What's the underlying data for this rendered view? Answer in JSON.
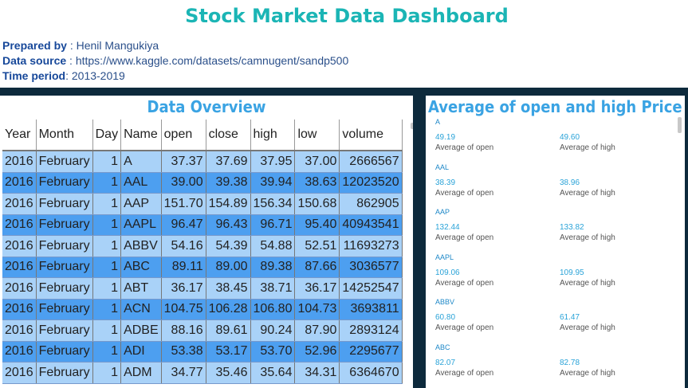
{
  "header": {
    "title": "Stock Market Data Dashboard",
    "prepared_by_label": "Prepared by",
    "prepared_by_value": " : Henil Mangukiya",
    "data_source_label": "Data source",
    "data_source_value": " : https://www.kaggle.com/datasets/camnugent/sandp500",
    "time_period_label": "Time period",
    "time_period_value": ": 2013-2019"
  },
  "overview": {
    "title": "Data Overview",
    "columns": [
      "Year",
      "Month",
      "Day",
      "Name",
      "open",
      "close",
      "high",
      "low",
      "volume"
    ],
    "rows": [
      [
        "2016",
        "February",
        "1",
        "A",
        "37.37",
        "37.69",
        "37.95",
        "37.00",
        "2666567"
      ],
      [
        "2016",
        "February",
        "1",
        "AAL",
        "39.00",
        "39.38",
        "39.94",
        "38.63",
        "12023520"
      ],
      [
        "2016",
        "February",
        "1",
        "AAP",
        "151.70",
        "154.89",
        "156.34",
        "150.68",
        "862905"
      ],
      [
        "2016",
        "February",
        "1",
        "AAPL",
        "96.47",
        "96.43",
        "96.71",
        "95.40",
        "40943541"
      ],
      [
        "2016",
        "February",
        "1",
        "ABBV",
        "54.16",
        "54.39",
        "54.88",
        "52.51",
        "11693273"
      ],
      [
        "2016",
        "February",
        "1",
        "ABC",
        "89.11",
        "89.00",
        "89.38",
        "87.66",
        "3036577"
      ],
      [
        "2016",
        "February",
        "1",
        "ABT",
        "36.17",
        "38.45",
        "38.71",
        "36.17",
        "14252547"
      ],
      [
        "2016",
        "February",
        "1",
        "ACN",
        "104.75",
        "106.28",
        "106.80",
        "104.73",
        "3693811"
      ],
      [
        "2016",
        "February",
        "1",
        "ADBE",
        "88.16",
        "89.61",
        "90.24",
        "87.90",
        "2893124"
      ],
      [
        "2016",
        "February",
        "1",
        "ADI",
        "53.38",
        "53.17",
        "53.70",
        "52.96",
        "2295677"
      ],
      [
        "2016",
        "February",
        "1",
        "ADM",
        "34.77",
        "35.46",
        "35.64",
        "34.31",
        "6364670"
      ]
    ]
  },
  "averages": {
    "title": "Average of open and high Price",
    "open_label": "Average of open",
    "high_label": "Average of high",
    "cards": [
      {
        "name": "A",
        "open": "49.19",
        "high": "49.60"
      },
      {
        "name": "AAL",
        "open": "38.39",
        "high": "38.96"
      },
      {
        "name": "AAP",
        "open": "132.44",
        "high": "133.82"
      },
      {
        "name": "AAPL",
        "open": "109.06",
        "high": "109.95"
      },
      {
        "name": "ABBV",
        "open": "60.80",
        "high": "61.47"
      },
      {
        "name": "ABC",
        "open": "82.07",
        "high": "82.78"
      }
    ]
  },
  "colors": {
    "title": "#1bb5b5",
    "section_title": "#3aa3e3",
    "row_light": "#a9d2f8",
    "row_dark": "#4d9ff0",
    "frame": "#0d2a3c"
  }
}
